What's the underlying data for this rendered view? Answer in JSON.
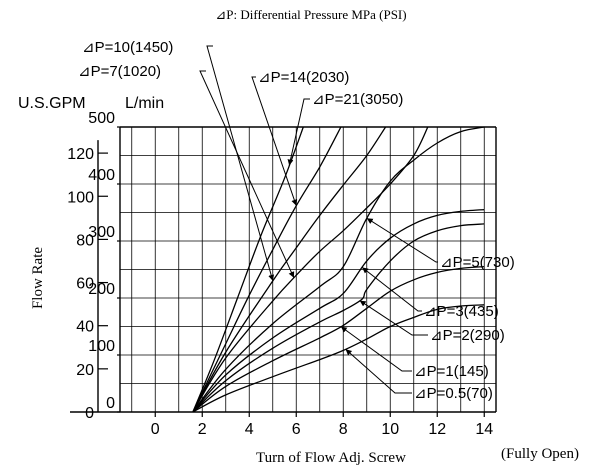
{
  "chart_data": {
    "type": "line",
    "title": "⊿P: Differential Pressure MPa (PSI)",
    "xlabel": "Turn of Flow Adj. Screw",
    "x_suffix": "(Fully Open)",
    "ylabel": "Flow Rate",
    "y_unit_left": "U.S.GPM",
    "y_unit_right": "L/min",
    "x_ticks": [
      "0",
      "2",
      "4",
      "6",
      "8",
      "10",
      "12",
      "14"
    ],
    "y_ticks_lmin": [
      "0",
      "100",
      "200",
      "300",
      "400",
      "500"
    ],
    "y_ticks_gpm": [
      "20",
      "40",
      "60",
      "80",
      "100",
      "120"
    ],
    "xlim": [
      -1.5,
      14.5
    ],
    "ylim": [
      0,
      500
    ],
    "grid": true,
    "series": [
      {
        "name": "⊿P=0.5(70)",
        "points": [
          [
            1.6,
            0
          ],
          [
            3,
            30
          ],
          [
            5,
            62
          ],
          [
            7,
            92
          ],
          [
            8,
            108
          ],
          [
            9,
            128
          ],
          [
            10,
            150
          ],
          [
            11,
            166
          ],
          [
            12,
            180
          ],
          [
            13,
            186
          ],
          [
            14,
            188
          ]
        ]
      },
      {
        "name": "⊿P=1(145)",
        "points": [
          [
            1.6,
            0
          ],
          [
            3,
            45
          ],
          [
            5,
            90
          ],
          [
            7,
            130
          ],
          [
            8,
            152
          ],
          [
            9,
            182
          ],
          [
            10,
            212
          ],
          [
            11,
            232
          ],
          [
            12,
            245
          ],
          [
            13,
            252
          ],
          [
            14,
            255
          ]
        ]
      },
      {
        "name": "⊿P=2(290)",
        "points": [
          [
            1.6,
            0
          ],
          [
            3,
            55
          ],
          [
            5,
            112
          ],
          [
            7,
            158
          ],
          [
            8,
            178
          ],
          [
            8.8,
            198
          ],
          [
            9,
            215
          ],
          [
            10,
            265
          ],
          [
            11,
            300
          ],
          [
            12,
            318
          ],
          [
            13,
            327
          ],
          [
            14,
            330
          ]
        ]
      },
      {
        "name": "⊿P=3(435)",
        "points": [
          [
            1.6,
            0
          ],
          [
            3,
            65
          ],
          [
            5,
            130
          ],
          [
            7,
            182
          ],
          [
            8,
            208
          ],
          [
            9,
            265
          ],
          [
            10,
            305
          ],
          [
            11,
            330
          ],
          [
            12,
            345
          ],
          [
            13,
            352
          ],
          [
            14,
            355
          ]
        ]
      },
      {
        "name": "⊿P=5(730)",
        "points": [
          [
            1.6,
            0
          ],
          [
            3,
            75
          ],
          [
            5,
            155
          ],
          [
            7,
            220
          ],
          [
            8,
            255
          ],
          [
            9,
            340
          ],
          [
            10,
            405
          ],
          [
            11,
            442
          ],
          [
            12,
            472
          ],
          [
            13,
            492
          ],
          [
            14,
            500
          ]
        ]
      },
      {
        "name": "⊿P=7(1020)",
        "points": [
          [
            1.6,
            0
          ],
          [
            3,
            95
          ],
          [
            5,
            195
          ],
          [
            6,
            240
          ],
          [
            7,
            282
          ],
          [
            8,
            318
          ],
          [
            9,
            358
          ],
          [
            10,
            400
          ],
          [
            11,
            450
          ],
          [
            11.6,
            500
          ]
        ]
      },
      {
        "name": "⊿P=10(1450)",
        "points": [
          [
            1.6,
            0
          ],
          [
            3,
            105
          ],
          [
            5,
            230
          ],
          [
            6,
            288
          ],
          [
            7,
            345
          ],
          [
            8,
            398
          ],
          [
            9,
            450
          ],
          [
            9.8,
            500
          ]
        ]
      },
      {
        "name": "⊿P=14(2030)",
        "points": [
          [
            1.6,
            0
          ],
          [
            3,
            120
          ],
          [
            4,
            205
          ],
          [
            5,
            285
          ],
          [
            6,
            362
          ],
          [
            7,
            430
          ],
          [
            7.9,
            500
          ]
        ]
      },
      {
        "name": "⊿P=21(3050)",
        "points": [
          [
            1.6,
            0
          ],
          [
            2.5,
            90
          ],
          [
            3.5,
            200
          ],
          [
            4.5,
            310
          ],
          [
            5.5,
            410
          ],
          [
            6.3,
            500
          ]
        ]
      }
    ]
  }
}
